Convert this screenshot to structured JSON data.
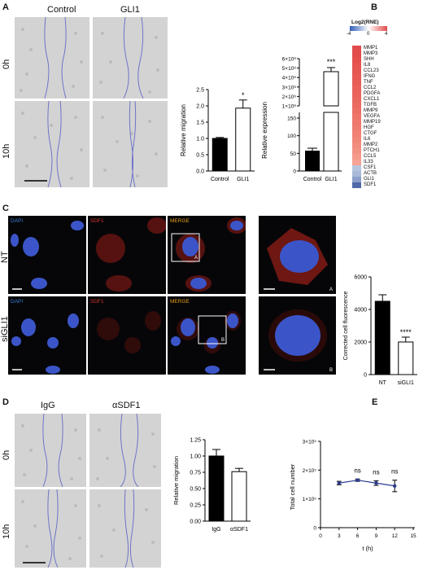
{
  "panel_letters": {
    "a": "A",
    "b": "B",
    "c": "C",
    "d": "D",
    "e": "E"
  },
  "panelA": {
    "col_labels": [
      "Control",
      "GLI1"
    ],
    "row_labels": [
      "0h",
      "10h"
    ],
    "chart_migration": {
      "type": "bar",
      "categories": [
        "Control",
        "GLI1"
      ],
      "values": [
        1.0,
        1.93
      ],
      "errors": [
        0.03,
        0.25
      ],
      "fills": [
        "#000000",
        "#ffffff"
      ],
      "ylabel": "Relative migration",
      "ylim": [
        0,
        2.5
      ],
      "yticks": [
        "0.0",
        "0.5",
        "1.0",
        "1.5",
        "2.0",
        "2.5"
      ],
      "significance": [
        "",
        "*"
      ]
    },
    "chart_expression": {
      "type": "bar",
      "categories": [
        "Control",
        "GLI1"
      ],
      "ylabel": "Relative expression",
      "yticks_upper": [
        "1×10⁶",
        "2×10⁶",
        "3×10⁶",
        "4×10⁶",
        "5×10⁶",
        "6×10⁶"
      ],
      "yticks_lower": [
        "0",
        "50",
        "100",
        "150"
      ],
      "significance": [
        "",
        "***"
      ]
    }
  },
  "panelB": {
    "legend_title": "Log2(RNE)",
    "legend_ticks": [
      "-4",
      "0",
      "4"
    ],
    "genes": [
      "MMP1",
      "MMP3",
      "SHH",
      "IL8",
      "CCL23",
      "IFNG",
      "TNF",
      "CCL2",
      "PDGFA",
      "CXCL1",
      "TGFB",
      "MMP9",
      "VEGFA",
      "MMP19",
      "HGF",
      "CTGF",
      "IL6",
      "MMP2",
      "PTCH1",
      "CCL5",
      "IL33",
      "CSF1",
      "ACTB",
      "GLI1",
      "SDF1"
    ],
    "colors": [
      "#e24b4b",
      "#e24c4c",
      "#e5504e",
      "#e65350",
      "#e65652",
      "#e75a55",
      "#e85d57",
      "#e9615a",
      "#ea645c",
      "#ea675f",
      "#eb6b62",
      "#ec6f65",
      "#ed7468",
      "#ee786c",
      "#ef7c70",
      "#f08174",
      "#f18778",
      "#f28c7d",
      "#f39283",
      "#f5998a",
      "#f6a295",
      "#b7c6df",
      "#a9bad8",
      "#8c9fc9",
      "#4f6aa8"
    ]
  },
  "panelC": {
    "rows": [
      {
        "label": "NT",
        "inset_letter": "A"
      },
      {
        "label": "siGLI1",
        "inset_letter": "B"
      }
    ],
    "channel_labels": [
      "DAPI",
      "SDF1",
      "MERGE"
    ],
    "channel_colors": [
      "#3a7bd5",
      "#d0342c",
      "#e8a020"
    ],
    "chart": {
      "type": "bar",
      "categories": [
        "NT",
        "siGLI1"
      ],
      "values": [
        4500,
        2000
      ],
      "errors": [
        400,
        300
      ],
      "fills": [
        "#000000",
        "#ffffff"
      ],
      "ylabel": "Corrected cell fluorescence",
      "ylim": [
        0,
        6000
      ],
      "yticks": [
        "0",
        "2000",
        "4000",
        "6000"
      ],
      "significance": [
        "",
        "****"
      ]
    }
  },
  "panelD": {
    "col_labels": [
      "IgG",
      "αSDF1"
    ],
    "row_labels": [
      "0h",
      "10h"
    ],
    "chart": {
      "type": "bar",
      "categories": [
        "IgG",
        "αSDF1"
      ],
      "values": [
        1.0,
        0.76
      ],
      "errors": [
        0.1,
        0.05
      ],
      "fills": [
        "#000000",
        "#ffffff"
      ],
      "ylabel": "Relative migration",
      "ylim": [
        0,
        1.25
      ],
      "yticks": [
        "0.00",
        "0.25",
        "0.50",
        "0.75",
        "1.00",
        "1.25"
      ],
      "significance": [
        "",
        ""
      ]
    }
  },
  "panelE": {
    "chart": {
      "type": "line",
      "x": [
        3,
        6,
        9,
        12
      ],
      "values": [
        1.55,
        1.65,
        1.55,
        1.45
      ],
      "errors": [
        0.06,
        0.04,
        0.08,
        0.2
      ],
      "color": "#2b3a8f",
      "xlabel": "t (h)",
      "ylabel": "Total cell number",
      "xlim": [
        0,
        15
      ],
      "ylim": [
        0,
        3
      ],
      "xticks": [
        "0",
        "3",
        "6",
        "9",
        "12",
        "15"
      ],
      "yticks": [
        "0",
        "1×10⁵",
        "2×10⁵",
        "3×10⁵"
      ],
      "significance": [
        "",
        "ns",
        "ns",
        "ns"
      ]
    }
  }
}
